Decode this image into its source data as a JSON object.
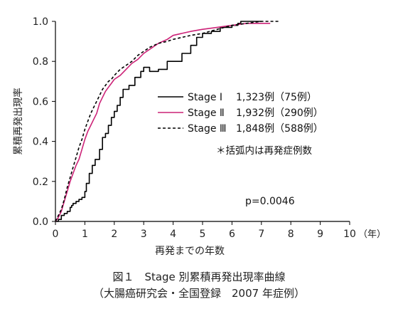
{
  "chart_data": {
    "type": "line",
    "title": "",
    "xlabel": "再発までの年数",
    "ylabel": "累積再発出現率",
    "x_unit": "（年）",
    "xlim": [
      0,
      10
    ],
    "ylim": [
      0,
      1.0
    ],
    "x_ticks": [
      "0",
      "1",
      "2",
      "3",
      "4",
      "5",
      "6",
      "7",
      "8",
      "9",
      "10"
    ],
    "y_ticks": [
      "0.0",
      "0.2",
      "0.4",
      "0.6",
      "0.8",
      "1.0"
    ],
    "legend_position": "center-right",
    "series": [
      {
        "name": "Stage Ⅰ",
        "count": "1,323例（75例）",
        "color": "#000000",
        "style": "solid",
        "step": true,
        "points": [
          [
            0,
            0
          ],
          [
            0.1,
            0.01
          ],
          [
            0.2,
            0.03
          ],
          [
            0.3,
            0.04
          ],
          [
            0.4,
            0.05
          ],
          [
            0.5,
            0.07
          ],
          [
            0.55,
            0.08
          ],
          [
            0.6,
            0.09
          ],
          [
            0.7,
            0.1
          ],
          [
            0.8,
            0.11
          ],
          [
            0.9,
            0.12
          ],
          [
            1.0,
            0.15
          ],
          [
            1.05,
            0.19
          ],
          [
            1.15,
            0.24
          ],
          [
            1.25,
            0.28
          ],
          [
            1.35,
            0.31
          ],
          [
            1.5,
            0.36
          ],
          [
            1.6,
            0.42
          ],
          [
            1.7,
            0.44
          ],
          [
            1.8,
            0.48
          ],
          [
            1.9,
            0.52
          ],
          [
            2.0,
            0.55
          ],
          [
            2.1,
            0.58
          ],
          [
            2.2,
            0.62
          ],
          [
            2.3,
            0.66
          ],
          [
            2.5,
            0.68
          ],
          [
            2.7,
            0.72
          ],
          [
            2.9,
            0.75
          ],
          [
            3.0,
            0.77
          ],
          [
            3.2,
            0.75
          ],
          [
            3.5,
            0.76
          ],
          [
            3.8,
            0.8
          ],
          [
            4.2,
            0.8
          ],
          [
            4.3,
            0.84
          ],
          [
            4.6,
            0.88
          ],
          [
            4.8,
            0.92
          ],
          [
            5.0,
            0.94
          ],
          [
            5.3,
            0.95
          ],
          [
            5.6,
            0.97
          ],
          [
            6.0,
            0.98
          ],
          [
            6.2,
            0.99
          ],
          [
            6.3,
            1.0
          ],
          [
            7.0,
            1.0
          ]
        ]
      },
      {
        "name": "Stage Ⅱ",
        "count": "1,932例（290例）",
        "color": "#cc2277",
        "style": "solid",
        "step": false,
        "points": [
          [
            0,
            0
          ],
          [
            0.1,
            0.02
          ],
          [
            0.2,
            0.05
          ],
          [
            0.3,
            0.1
          ],
          [
            0.4,
            0.15
          ],
          [
            0.5,
            0.2
          ],
          [
            0.6,
            0.24
          ],
          [
            0.7,
            0.28
          ],
          [
            0.8,
            0.31
          ],
          [
            0.9,
            0.36
          ],
          [
            1.0,
            0.41
          ],
          [
            1.1,
            0.45
          ],
          [
            1.2,
            0.48
          ],
          [
            1.3,
            0.51
          ],
          [
            1.4,
            0.54
          ],
          [
            1.5,
            0.59
          ],
          [
            1.6,
            0.62
          ],
          [
            1.7,
            0.65
          ],
          [
            1.8,
            0.67
          ],
          [
            1.9,
            0.69
          ],
          [
            2.0,
            0.71
          ],
          [
            2.2,
            0.73
          ],
          [
            2.4,
            0.76
          ],
          [
            2.6,
            0.79
          ],
          [
            2.8,
            0.81
          ],
          [
            3.0,
            0.84
          ],
          [
            3.2,
            0.86
          ],
          [
            3.5,
            0.89
          ],
          [
            3.8,
            0.91
          ],
          [
            4.0,
            0.93
          ],
          [
            4.3,
            0.94
          ],
          [
            4.6,
            0.95
          ],
          [
            5.0,
            0.96
          ],
          [
            5.5,
            0.97
          ],
          [
            6.0,
            0.98
          ],
          [
            6.5,
            0.99
          ],
          [
            7.0,
            0.99
          ],
          [
            7.3,
            0.99
          ]
        ]
      },
      {
        "name": "Stage Ⅲ",
        "count": "1,848例（588例）",
        "color": "#000000",
        "style": "dashed",
        "step": false,
        "points": [
          [
            0,
            0
          ],
          [
            0.1,
            0.03
          ],
          [
            0.2,
            0.06
          ],
          [
            0.3,
            0.11
          ],
          [
            0.4,
            0.17
          ],
          [
            0.5,
            0.22
          ],
          [
            0.6,
            0.27
          ],
          [
            0.7,
            0.32
          ],
          [
            0.8,
            0.37
          ],
          [
            0.9,
            0.41
          ],
          [
            1.0,
            0.46
          ],
          [
            1.1,
            0.5
          ],
          [
            1.2,
            0.54
          ],
          [
            1.3,
            0.57
          ],
          [
            1.4,
            0.6
          ],
          [
            1.5,
            0.63
          ],
          [
            1.6,
            0.66
          ],
          [
            1.7,
            0.68
          ],
          [
            1.8,
            0.7
          ],
          [
            1.9,
            0.71
          ],
          [
            2.0,
            0.73
          ],
          [
            2.2,
            0.76
          ],
          [
            2.4,
            0.78
          ],
          [
            2.6,
            0.8
          ],
          [
            2.8,
            0.83
          ],
          [
            3.0,
            0.85
          ],
          [
            3.2,
            0.87
          ],
          [
            3.5,
            0.89
          ],
          [
            3.8,
            0.9
          ],
          [
            4.0,
            0.91
          ],
          [
            4.3,
            0.92
          ],
          [
            4.6,
            0.93
          ],
          [
            5.0,
            0.94
          ],
          [
            5.5,
            0.96
          ],
          [
            6.0,
            0.98
          ],
          [
            6.5,
            0.99
          ],
          [
            7.0,
            1.0
          ],
          [
            7.6,
            1.0
          ]
        ]
      }
    ],
    "annotations": {
      "note": "＊括弧内は再発症例数",
      "p_value": "p=0.0046"
    }
  },
  "caption": {
    "line1": "図１　Stage 別累積再発出現率曲線",
    "line2": "（大腸癌研究会・全国登録　2007 年症例）"
  }
}
